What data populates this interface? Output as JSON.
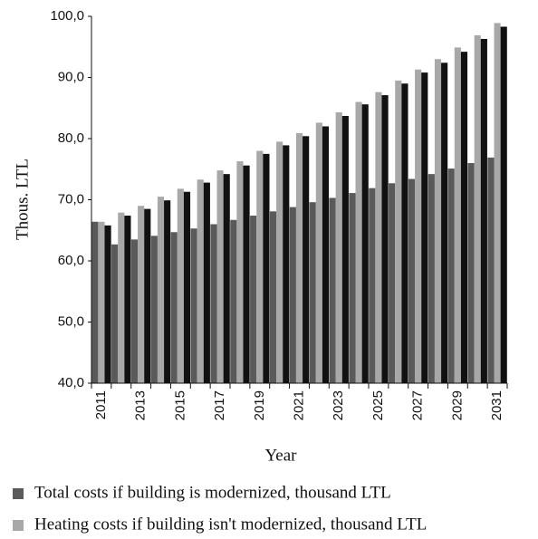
{
  "chart_data": {
    "type": "bar",
    "y_label": "Thous. LTL",
    "x_label": "Year",
    "categories": [
      "2011",
      null,
      "2013",
      null,
      "2015",
      null,
      "2017",
      null,
      "2019",
      null,
      "2021",
      null,
      "2023",
      null,
      "2025",
      null,
      "2027",
      null,
      "2029",
      null,
      "2031"
    ],
    "series": [
      {
        "name": "Total costs if building is modernized, thousand LTL",
        "color": "#5a5a5a",
        "values": [
          66.4,
          62.7,
          63.5,
          64.1,
          64.7,
          65.3,
          66.0,
          66.7,
          67.4,
          68.1,
          68.8,
          69.6,
          70.3,
          71.1,
          71.9,
          72.7,
          73.4,
          74.2,
          75.1,
          76.0,
          76.9
        ]
      },
      {
        "name": "Heating costs if building isn't modernized, thousand LTL",
        "color": "#a8a8a8",
        "values": [
          66.4,
          67.9,
          69.0,
          70.5,
          71.8,
          73.3,
          74.8,
          76.3,
          78.0,
          79.5,
          80.9,
          82.6,
          84.3,
          86.0,
          87.6,
          89.5,
          91.3,
          93.0,
          94.9,
          96.9,
          98.9
        ]
      },
      {
        "color": "#111111",
        "values": [
          65.8,
          67.4,
          68.5,
          69.9,
          71.3,
          72.8,
          74.2,
          75.6,
          77.5,
          78.9,
          80.4,
          82.0,
          83.7,
          85.6,
          87.1,
          89.0,
          90.8,
          92.4,
          94.2,
          96.3,
          98.3
        ]
      }
    ],
    "ylim": [
      40,
      100
    ],
    "yticks": [
      {
        "value": 40,
        "label": "40,0"
      },
      {
        "value": 50,
        "label": "50,0"
      },
      {
        "value": 60,
        "label": "60,0"
      },
      {
        "value": 70,
        "label": "70,0"
      },
      {
        "value": 80,
        "label": "80,0"
      },
      {
        "value": 90,
        "label": "90,0"
      },
      {
        "value": 100,
        "label": "100,0"
      }
    ],
    "grid": false
  }
}
